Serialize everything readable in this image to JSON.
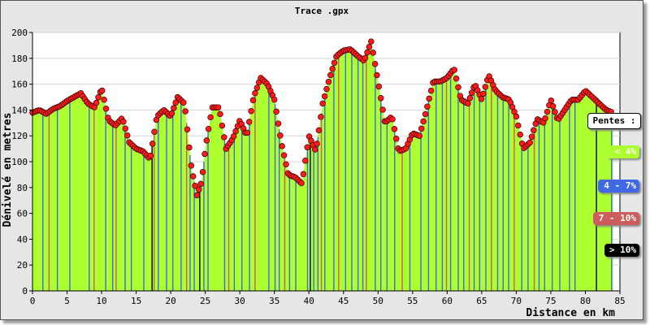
{
  "chart_data": {
    "type": "area",
    "title": "Trace .gpx",
    "xlabel": "Distance en km",
    "ylabel": "Dénivelé en metres",
    "xlim": [
      0,
      85
    ],
    "ylim": [
      0,
      200
    ],
    "x_ticks": [
      "0",
      "5",
      "10",
      "15",
      "20",
      "25",
      "30",
      "35",
      "40",
      "45",
      "50",
      "55",
      "60",
      "65",
      "70",
      "75",
      "80",
      "85"
    ],
    "y_ticks": [
      "0",
      "20",
      "40",
      "60",
      "80",
      "100",
      "120",
      "140",
      "160",
      "180",
      "200"
    ],
    "grid": true,
    "legend_position": "right",
    "legend_title": "Pentes :",
    "legend": [
      {
        "label": "< 4%",
        "color": "#adff2f"
      },
      {
        "label": "4 - 7%",
        "color": "#4169e1"
      },
      {
        "label": "7 - 10%",
        "color": "#cd5c5c"
      },
      {
        "label": "> 10%",
        "color": "#000000"
      }
    ],
    "profile": [
      [
        0,
        138
      ],
      [
        1,
        140
      ],
      [
        2,
        137
      ],
      [
        3,
        141
      ],
      [
        4,
        143
      ],
      [
        5,
        147
      ],
      [
        6,
        150
      ],
      [
        7,
        153
      ],
      [
        8,
        145
      ],
      [
        9,
        142
      ],
      [
        10,
        157
      ],
      [
        11,
        132
      ],
      [
        12,
        128
      ],
      [
        13,
        134
      ],
      [
        14,
        115
      ],
      [
        15,
        110
      ],
      [
        16,
        108
      ],
      [
        17,
        102
      ],
      [
        18,
        135
      ],
      [
        19,
        140
      ],
      [
        20,
        135
      ],
      [
        21,
        150
      ],
      [
        22,
        145
      ],
      [
        23,
        95
      ],
      [
        23.8,
        74
      ],
      [
        24.5,
        85
      ],
      [
        25,
        110
      ],
      [
        26,
        142
      ],
      [
        27,
        142
      ],
      [
        28,
        110
      ],
      [
        29,
        118
      ],
      [
        30,
        132
      ],
      [
        31,
        120
      ],
      [
        32,
        150
      ],
      [
        33,
        165
      ],
      [
        34,
        160
      ],
      [
        35,
        148
      ],
      [
        36,
        115
      ],
      [
        37,
        90
      ],
      [
        38,
        88
      ],
      [
        39,
        83
      ],
      [
        40,
        120
      ],
      [
        41,
        108
      ],
      [
        42,
        145
      ],
      [
        43,
        165
      ],
      [
        44,
        182
      ],
      [
        45,
        186
      ],
      [
        46,
        187
      ],
      [
        47,
        182
      ],
      [
        48,
        178
      ],
      [
        49,
        193
      ],
      [
        50,
        162
      ],
      [
        51,
        130
      ],
      [
        52,
        135
      ],
      [
        53,
        108
      ],
      [
        54,
        110
      ],
      [
        55,
        122
      ],
      [
        56,
        120
      ],
      [
        57,
        140
      ],
      [
        58,
        162
      ],
      [
        59,
        162
      ],
      [
        60,
        165
      ],
      [
        61,
        172
      ],
      [
        62,
        148
      ],
      [
        63,
        145
      ],
      [
        64,
        160
      ],
      [
        65,
        148
      ],
      [
        66,
        167
      ],
      [
        67,
        155
      ],
      [
        68,
        150
      ],
      [
        69,
        148
      ],
      [
        70,
        135
      ],
      [
        71,
        110
      ],
      [
        72,
        115
      ],
      [
        73,
        133
      ],
      [
        74,
        130
      ],
      [
        75,
        148
      ],
      [
        76,
        132
      ],
      [
        77,
        140
      ],
      [
        78,
        148
      ],
      [
        79,
        148
      ],
      [
        80,
        155
      ],
      [
        81,
        150
      ],
      [
        82,
        145
      ],
      [
        83,
        140
      ],
      [
        84,
        138
      ]
    ],
    "slope_lines": [
      {
        "x": 1.5,
        "cls": "blue"
      },
      {
        "x": 2.4,
        "cls": "red"
      },
      {
        "x": 3.6,
        "cls": "blue"
      },
      {
        "x": 5.4,
        "cls": "blue"
      },
      {
        "x": 8.2,
        "cls": "blue"
      },
      {
        "x": 8.9,
        "cls": "red"
      },
      {
        "x": 10.6,
        "cls": "blue"
      },
      {
        "x": 11.6,
        "cls": "blue"
      },
      {
        "x": 12.1,
        "cls": "red"
      },
      {
        "x": 13.4,
        "cls": "blue"
      },
      {
        "x": 14.3,
        "cls": "blue"
      },
      {
        "x": 16.1,
        "cls": "blue"
      },
      {
        "x": 17.3,
        "cls": "black"
      },
      {
        "x": 17.6,
        "cls": "red"
      },
      {
        "x": 18.2,
        "cls": "blue"
      },
      {
        "x": 19.4,
        "cls": "blue"
      },
      {
        "x": 20.3,
        "cls": "blue"
      },
      {
        "x": 21.5,
        "cls": "blue"
      },
      {
        "x": 22.3,
        "cls": "red"
      },
      {
        "x": 22.8,
        "cls": "blue"
      },
      {
        "x": 23.4,
        "cls": "blue"
      },
      {
        "x": 24.2,
        "cls": "black"
      },
      {
        "x": 24.8,
        "cls": "blue"
      },
      {
        "x": 25.4,
        "cls": "blue"
      },
      {
        "x": 27.8,
        "cls": "blue"
      },
      {
        "x": 28.4,
        "cls": "red"
      },
      {
        "x": 29.2,
        "cls": "blue"
      },
      {
        "x": 30.3,
        "cls": "blue"
      },
      {
        "x": 31.4,
        "cls": "blue"
      },
      {
        "x": 32.2,
        "cls": "red"
      },
      {
        "x": 34.2,
        "cls": "blue"
      },
      {
        "x": 35.1,
        "cls": "blue"
      },
      {
        "x": 35.7,
        "cls": "blue"
      },
      {
        "x": 36.5,
        "cls": "red"
      },
      {
        "x": 37.2,
        "cls": "blue"
      },
      {
        "x": 38.1,
        "cls": "blue"
      },
      {
        "x": 39.8,
        "cls": "blue"
      },
      {
        "x": 40.2,
        "cls": "black"
      },
      {
        "x": 40.7,
        "cls": "blue"
      },
      {
        "x": 41.3,
        "cls": "blue"
      },
      {
        "x": 41.8,
        "cls": "red"
      },
      {
        "x": 42.3,
        "cls": "blue"
      },
      {
        "x": 43.6,
        "cls": "blue"
      },
      {
        "x": 44.3,
        "cls": "red"
      },
      {
        "x": 45.3,
        "cls": "blue"
      },
      {
        "x": 46.2,
        "cls": "blue"
      },
      {
        "x": 47.1,
        "cls": "blue"
      },
      {
        "x": 47.8,
        "cls": "blue"
      },
      {
        "x": 48.3,
        "cls": "red"
      },
      {
        "x": 49.6,
        "cls": "blue"
      },
      {
        "x": 50.4,
        "cls": "blue"
      },
      {
        "x": 51.3,
        "cls": "blue"
      },
      {
        "x": 52.4,
        "cls": "blue"
      },
      {
        "x": 53.5,
        "cls": "red"
      },
      {
        "x": 54.6,
        "cls": "blue"
      },
      {
        "x": 56.2,
        "cls": "blue"
      },
      {
        "x": 57.3,
        "cls": "blue"
      },
      {
        "x": 58.4,
        "cls": "blue"
      },
      {
        "x": 59.3,
        "cls": "blue"
      },
      {
        "x": 59.9,
        "cls": "red"
      },
      {
        "x": 60.5,
        "cls": "blue"
      },
      {
        "x": 61.6,
        "cls": "blue"
      },
      {
        "x": 62.4,
        "cls": "blue"
      },
      {
        "x": 63.2,
        "cls": "red"
      },
      {
        "x": 63.9,
        "cls": "blue"
      },
      {
        "x": 64.7,
        "cls": "blue"
      },
      {
        "x": 65.6,
        "cls": "blue"
      },
      {
        "x": 66.4,
        "cls": "red"
      },
      {
        "x": 67.3,
        "cls": "blue"
      },
      {
        "x": 68.1,
        "cls": "blue"
      },
      {
        "x": 68.9,
        "cls": "blue"
      },
      {
        "x": 69.7,
        "cls": "red"
      },
      {
        "x": 70.8,
        "cls": "blue"
      },
      {
        "x": 71.7,
        "cls": "blue"
      },
      {
        "x": 72.6,
        "cls": "red"
      },
      {
        "x": 73.3,
        "cls": "blue"
      },
      {
        "x": 74.1,
        "cls": "blue"
      },
      {
        "x": 75.2,
        "cls": "blue"
      },
      {
        "x": 76.3,
        "cls": "blue"
      },
      {
        "x": 77.7,
        "cls": "blue"
      },
      {
        "x": 78.5,
        "cls": "blue"
      },
      {
        "x": 81.6,
        "cls": "black"
      },
      {
        "x": 83.8,
        "cls": "blue"
      }
    ]
  }
}
